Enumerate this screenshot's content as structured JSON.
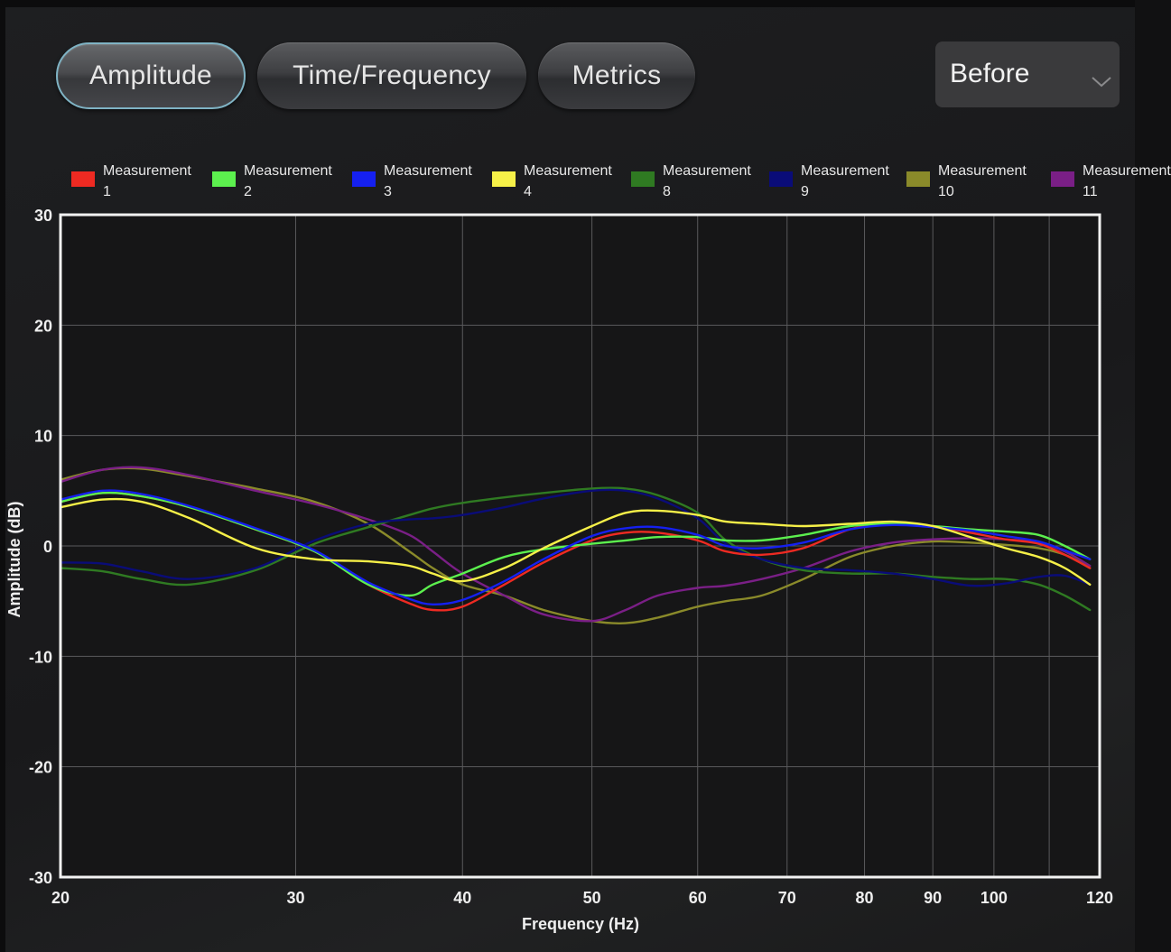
{
  "tabs": [
    {
      "label": "Amplitude",
      "active": true
    },
    {
      "label": "Time/Frequency",
      "active": false
    },
    {
      "label": "Metrics",
      "active": false
    }
  ],
  "selector": {
    "value": "Before",
    "icon": "chevron-down-icon"
  },
  "chart_data": {
    "type": "line",
    "title": "",
    "xlabel": "Frequency (Hz)",
    "ylabel": "Amplitude (dB)",
    "xscale": "log",
    "xlim": [
      20,
      120
    ],
    "ylim": [
      -30,
      30
    ],
    "xticks": [
      20,
      30,
      40,
      50,
      60,
      70,
      80,
      90,
      100,
      120
    ],
    "yticks": [
      30,
      20,
      10,
      0,
      -10,
      -20,
      -30
    ],
    "grid": true,
    "legend": "top",
    "series": [
      {
        "name": "Measurement 1",
        "color": "#ee2a22",
        "x": [
          20,
          21.5,
          23,
          25,
          28,
          31,
          34,
          36.5,
          38,
          40,
          43,
          46,
          50,
          53,
          56,
          60,
          63,
          67,
          72,
          78,
          84,
          90,
          96,
          102,
          108,
          113,
          118
        ],
        "y": [
          4,
          4.8,
          4.5,
          3.5,
          1.5,
          -0.5,
          -3.5,
          -5.2,
          -5.8,
          -5.5,
          -3.5,
          -1.5,
          0.5,
          1.2,
          1.2,
          0.5,
          -0.5,
          -0.8,
          -0.2,
          1.5,
          2.0,
          1.8,
          1.2,
          0.6,
          0.2,
          -0.8,
          -2
        ]
      },
      {
        "name": "Measurement 2",
        "color": "#5cf04e",
        "x": [
          20,
          21.5,
          23,
          25,
          28,
          31,
          34,
          36.5,
          38,
          40,
          43,
          46,
          50,
          53,
          56,
          60,
          63,
          67,
          72,
          78,
          84,
          90,
          96,
          102,
          108,
          113,
          118
        ],
        "y": [
          4,
          4.8,
          4.5,
          3.5,
          1.5,
          -0.5,
          -3.5,
          -4.5,
          -3.5,
          -2.5,
          -1.0,
          -0.3,
          0.2,
          0.5,
          0.8,
          0.8,
          0.5,
          0.5,
          1.0,
          1.8,
          2.0,
          1.8,
          1.5,
          1.3,
          1.0,
          0.0,
          -1.2
        ]
      },
      {
        "name": "Measurement 3",
        "color": "#1520f0",
        "x": [
          20,
          21.5,
          23,
          25,
          28,
          31,
          34,
          36.5,
          38,
          40,
          43,
          46,
          50,
          53,
          56,
          60,
          63,
          67,
          72,
          78,
          84,
          90,
          96,
          102,
          108,
          113,
          118
        ],
        "y": [
          4.2,
          5.0,
          4.7,
          3.6,
          1.6,
          -0.4,
          -3.3,
          -4.8,
          -5.3,
          -4.9,
          -3.2,
          -1.2,
          0.9,
          1.6,
          1.7,
          1.0,
          0.0,
          -0.2,
          0.3,
          1.5,
          1.9,
          1.7,
          1.4,
          0.9,
          0.4,
          -0.4,
          -1.2
        ]
      },
      {
        "name": "Measurement 4",
        "color": "#f6f048",
        "x": [
          20,
          21.5,
          23,
          25,
          28,
          31,
          34,
          36.5,
          38,
          40,
          43,
          46,
          50,
          53,
          56,
          60,
          63,
          67,
          72,
          78,
          84,
          90,
          96,
          102,
          108,
          113,
          118
        ],
        "y": [
          3.5,
          4.2,
          4.0,
          2.5,
          -0.2,
          -1.2,
          -1.4,
          -1.8,
          -2.5,
          -3.2,
          -2.0,
          -0.2,
          1.8,
          3.0,
          3.2,
          2.8,
          2.2,
          2.0,
          1.8,
          2.0,
          2.2,
          1.8,
          0.8,
          -0.2,
          -1.0,
          -2.0,
          -3.5
        ]
      },
      {
        "name": "Measurement 8",
        "color": "#2f7a22",
        "x": [
          20,
          21.5,
          23,
          25,
          28,
          31,
          34,
          36.5,
          38,
          40,
          43,
          46,
          50,
          53,
          56,
          60,
          63,
          67,
          72,
          78,
          84,
          90,
          96,
          102,
          108,
          113,
          118
        ],
        "y": [
          -2.0,
          -2.3,
          -3.0,
          -3.5,
          -2.2,
          0.2,
          1.7,
          2.8,
          3.4,
          3.9,
          4.4,
          4.8,
          5.2,
          5.2,
          4.6,
          3.0,
          0.5,
          -1.2,
          -2.2,
          -2.5,
          -2.5,
          -2.8,
          -3.0,
          -3.0,
          -3.5,
          -4.5,
          -5.8
        ]
      },
      {
        "name": "Measurement 9",
        "color": "#0a0c78",
        "x": [
          20,
          21.5,
          23,
          25,
          28,
          31,
          34,
          36.5,
          38,
          40,
          43,
          46,
          50,
          53,
          56,
          60,
          63,
          67,
          72,
          78,
          84,
          90,
          96,
          102,
          108,
          113,
          118
        ],
        "y": [
          -1.5,
          -1.6,
          -2.3,
          -3.0,
          -2.0,
          0.5,
          2.0,
          2.4,
          2.5,
          2.8,
          3.5,
          4.3,
          5.0,
          5.0,
          4.3,
          2.5,
          0.2,
          -1.2,
          -2.0,
          -2.2,
          -2.5,
          -3.0,
          -3.6,
          -3.4,
          -2.8,
          -2.7,
          -3.5
        ]
      },
      {
        "name": "Measurement 10",
        "color": "#8a8a2a",
        "x": [
          20,
          21.5,
          23,
          25,
          28,
          31,
          34,
          36.5,
          38,
          40,
          43,
          46,
          50,
          53,
          56,
          60,
          63,
          67,
          72,
          78,
          84,
          90,
          96,
          102,
          108,
          113,
          118
        ],
        "y": [
          6.0,
          6.9,
          7.0,
          6.3,
          5.2,
          4.0,
          2.0,
          -0.5,
          -2.0,
          -3.5,
          -4.5,
          -5.8,
          -6.8,
          -7.0,
          -6.5,
          -5.5,
          -5.0,
          -4.5,
          -3.0,
          -1.0,
          0.0,
          0.4,
          0.3,
          0.1,
          -0.2,
          -0.8,
          -2.0
        ]
      },
      {
        "name": "Measurement 11",
        "color": "#7a1f86",
        "x": [
          20,
          21.5,
          23,
          25,
          28,
          31,
          34,
          36.5,
          38,
          40,
          43,
          46,
          50,
          53,
          56,
          60,
          63,
          67,
          72,
          78,
          84,
          90,
          96,
          102,
          108,
          113,
          118
        ],
        "y": [
          5.8,
          6.9,
          7.1,
          6.4,
          5.0,
          3.8,
          2.4,
          1.0,
          -0.5,
          -2.5,
          -4.5,
          -6.2,
          -6.8,
          -5.8,
          -4.5,
          -3.8,
          -3.6,
          -3.0,
          -2.0,
          -0.5,
          0.3,
          0.6,
          0.7,
          0.6,
          0.3,
          -0.5,
          -1.8
        ]
      }
    ]
  }
}
